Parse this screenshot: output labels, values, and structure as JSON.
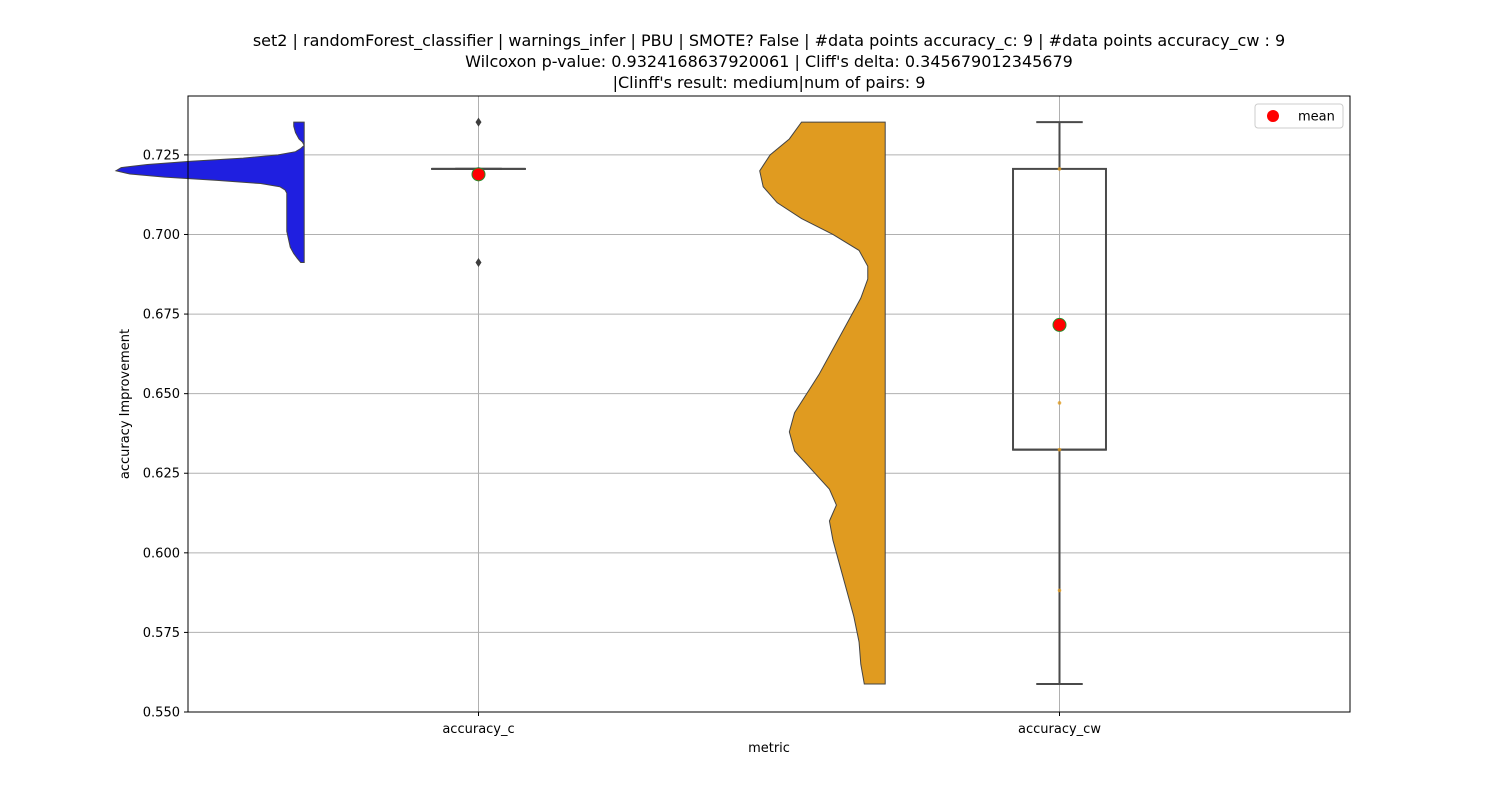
{
  "title_lines": [
    "set2 | randomForest_classifier | warnings_infer | PBU | SMOTE? False | #data points accuracy_c: 9 | #data points accuracy_cw : 9",
    "Wilcoxon p-value: 0.9324168637920061 | Cliff's delta: 0.345679012345679",
    "|Clinff's result: medium|num of pairs: 9"
  ],
  "chart_data": {
    "type": "box",
    "title": "set2 | randomForest_classifier | warnings_infer | PBU | SMOTE? False | #data points accuracy_c: 9 | #data points accuracy_cw : 9 / Wilcoxon p-value: 0.9324168637920061 | Cliff's delta: 0.345679012345679 / |Clinff's result: medium|num of pairs: 9",
    "xlabel": "metric",
    "ylabel": "accuracy Improvement",
    "categories": [
      "accuracy_c",
      "accuracy_cw"
    ],
    "ylim": [
      0.55,
      0.7435
    ],
    "yticks": [
      0.55,
      0.575,
      0.6,
      0.625,
      0.65,
      0.675,
      0.7,
      0.725
    ],
    "ytick_labels": [
      "0.550",
      "0.575",
      "0.600",
      "0.625",
      "0.650",
      "0.675",
      "0.700",
      "0.725"
    ],
    "grid": true,
    "legend": {
      "label": "mean",
      "marker_color": "#ff0000",
      "placement": "upper right"
    },
    "series": [
      {
        "category": "accuracy_c",
        "violin_color": "#1f1fe0",
        "box": {
          "whisker_low": 0.7206,
          "q1": 0.7206,
          "median": 0.7206,
          "q3": 0.7206,
          "whisker_high": 0.7206
        },
        "outliers": [
          0.7353,
          0.6912
        ],
        "mean": 0.7189,
        "points": [
          0.7206
        ],
        "violin_range": [
          0.6912,
          0.7353
        ],
        "violin_profile": [
          [
            0.6912,
            0.02
          ],
          [
            0.6925,
            0.04
          ],
          [
            0.694,
            0.06
          ],
          [
            0.696,
            0.08
          ],
          [
            0.6985,
            0.09
          ],
          [
            0.701,
            0.1
          ],
          [
            0.704,
            0.1
          ],
          [
            0.707,
            0.1
          ],
          [
            0.71,
            0.1
          ],
          [
            0.713,
            0.1
          ],
          [
            0.714,
            0.11
          ],
          [
            0.715,
            0.14
          ],
          [
            0.716,
            0.25
          ],
          [
            0.717,
            0.5
          ],
          [
            0.718,
            0.8
          ],
          [
            0.719,
            1.0
          ],
          [
            0.72,
            1.08
          ],
          [
            0.721,
            1.05
          ],
          [
            0.722,
            0.9
          ],
          [
            0.723,
            0.65
          ],
          [
            0.724,
            0.35
          ],
          [
            0.725,
            0.15
          ],
          [
            0.726,
            0.05
          ],
          [
            0.727,
            0.02
          ],
          [
            0.728,
            0.0
          ],
          [
            0.729,
            0.01
          ],
          [
            0.73,
            0.03
          ],
          [
            0.732,
            0.05
          ],
          [
            0.734,
            0.06
          ],
          [
            0.7353,
            0.06
          ]
        ]
      },
      {
        "category": "accuracy_cw",
        "violin_color": "#e09b20",
        "box": {
          "whisker_low": 0.5588,
          "q1": 0.6324,
          "median": 0.6324,
          "q3": 0.7206,
          "whisker_high": 0.7353
        },
        "outliers": [],
        "mean": 0.6716,
        "points": [
          0.7206,
          0.6471,
          0.6324,
          0.5882
        ],
        "violin_range": [
          0.5588,
          0.7353
        ],
        "violin_profile": [
          [
            0.5588,
            0.12
          ],
          [
            0.565,
            0.14
          ],
          [
            0.572,
            0.15
          ],
          [
            0.58,
            0.18
          ],
          [
            0.588,
            0.22
          ],
          [
            0.596,
            0.26
          ],
          [
            0.604,
            0.3
          ],
          [
            0.61,
            0.32
          ],
          [
            0.615,
            0.28
          ],
          [
            0.62,
            0.32
          ],
          [
            0.626,
            0.42
          ],
          [
            0.632,
            0.52
          ],
          [
            0.638,
            0.55
          ],
          [
            0.644,
            0.52
          ],
          [
            0.65,
            0.45
          ],
          [
            0.656,
            0.38
          ],
          [
            0.662,
            0.32
          ],
          [
            0.668,
            0.26
          ],
          [
            0.674,
            0.2
          ],
          [
            0.68,
            0.14
          ],
          [
            0.686,
            0.1
          ],
          [
            0.69,
            0.1
          ],
          [
            0.695,
            0.15
          ],
          [
            0.7,
            0.3
          ],
          [
            0.705,
            0.48
          ],
          [
            0.71,
            0.62
          ],
          [
            0.715,
            0.7
          ],
          [
            0.72,
            0.72
          ],
          [
            0.725,
            0.66
          ],
          [
            0.73,
            0.55
          ],
          [
            0.7353,
            0.48
          ]
        ]
      }
    ]
  }
}
